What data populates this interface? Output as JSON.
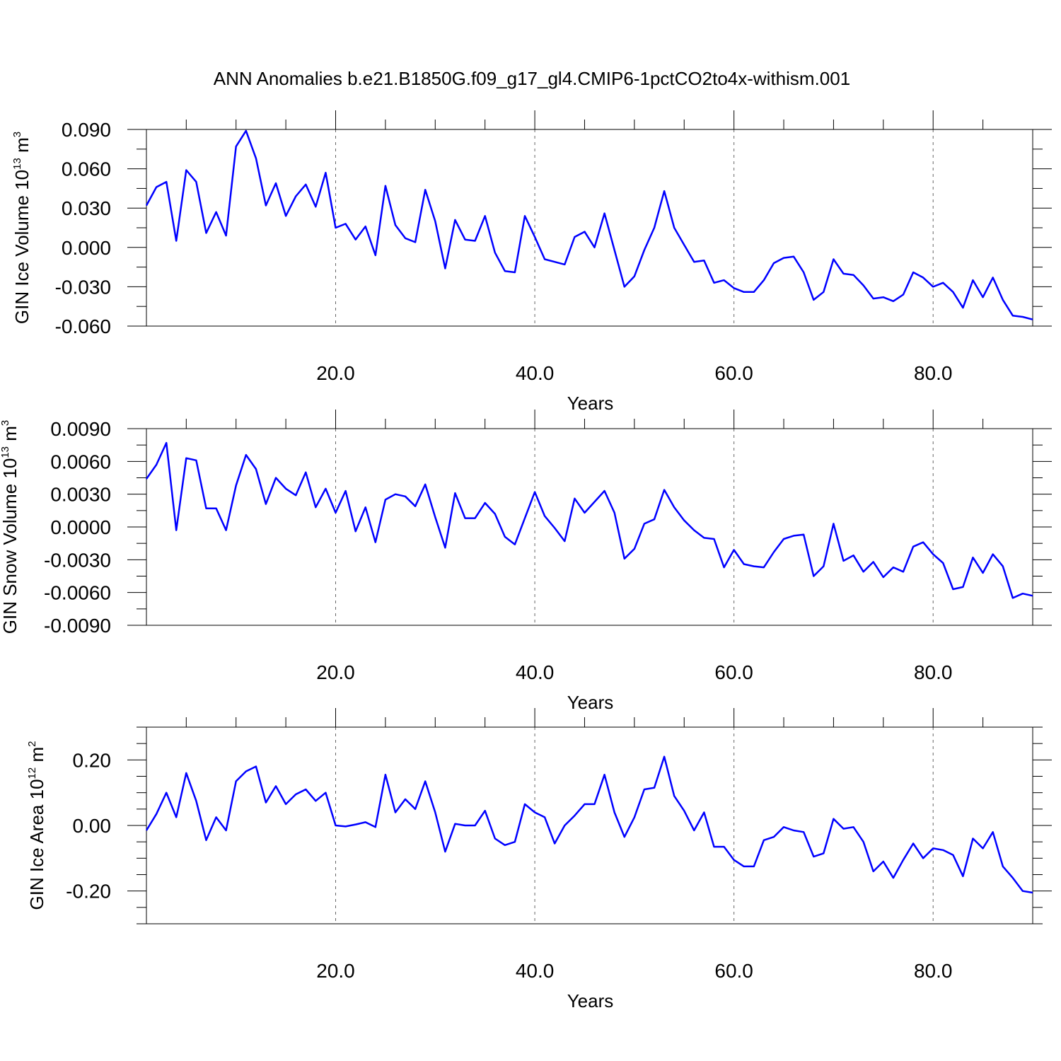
{
  "title": "ANN Anomalies b.e21.B1850G.f09_g17_gl4.CMIP6-1pctCO2to4x-withism.001",
  "chart_data": [
    {
      "type": "line",
      "ylabel": {
        "text": "GIN Ice Volume 10",
        "exp": "13",
        "unit": " m",
        "unit_exp": "3"
      },
      "xlabel": "Years",
      "xlim": [
        1,
        90
      ],
      "ylim": [
        -0.06,
        0.09
      ],
      "yticks": [
        "0.090",
        "0.060",
        "0.030",
        "0.000",
        "-0.030",
        "-0.060"
      ],
      "ytick_values": [
        0.09,
        0.06,
        0.03,
        0.0,
        -0.03,
        -0.06
      ],
      "xticks": [
        "20.0",
        "40.0",
        "60.0",
        "80.0"
      ],
      "xtick_values": [
        20,
        40,
        60,
        80
      ],
      "grid": "vertical-dashed",
      "color": "#0000ff",
      "values": [
        0.032,
        0.046,
        0.05,
        0.005,
        0.059,
        0.05,
        0.011,
        0.027,
        0.009,
        0.077,
        0.089,
        0.068,
        0.032,
        0.049,
        0.024,
        0.039,
        0.048,
        0.031,
        0.057,
        0.015,
        0.018,
        0.006,
        0.016,
        -0.006,
        0.047,
        0.017,
        0.007,
        0.004,
        0.044,
        0.02,
        -0.016,
        0.021,
        0.006,
        0.005,
        0.024,
        -0.004,
        -0.018,
        -0.019,
        0.024,
        0.008,
        -0.009,
        -0.011,
        -0.013,
        0.008,
        0.012,
        0.0,
        0.026,
        -0.002,
        -0.03,
        -0.022,
        -0.002,
        0.015,
        0.043,
        0.015,
        0.002,
        -0.011,
        -0.01,
        -0.027,
        -0.025,
        -0.031,
        -0.034,
        -0.034,
        -0.025,
        -0.012,
        -0.008,
        -0.007,
        -0.019,
        -0.04,
        -0.034,
        -0.009,
        -0.02,
        -0.021,
        -0.029,
        -0.039,
        -0.038,
        -0.041,
        -0.036,
        -0.019,
        -0.023,
        -0.03,
        -0.027,
        -0.034,
        -0.046,
        -0.025,
        -0.038,
        -0.023,
        -0.04,
        -0.052,
        -0.053,
        -0.055
      ]
    },
    {
      "type": "line",
      "ylabel": {
        "text": "GIN Snow Volume 10",
        "exp": "13",
        "unit": " m",
        "unit_exp": "3"
      },
      "xlabel": "Years",
      "xlim": [
        1,
        90
      ],
      "ylim": [
        -0.009,
        0.009
      ],
      "yticks": [
        "0.0090",
        "0.0060",
        "0.0030",
        "0.0000",
        "-0.0030",
        "-0.0060",
        "-0.0090"
      ],
      "ytick_values": [
        0.009,
        0.006,
        0.003,
        0.0,
        -0.003,
        -0.006,
        -0.009
      ],
      "xticks": [
        "20.0",
        "40.0",
        "60.0",
        "80.0"
      ],
      "xtick_values": [
        20,
        40,
        60,
        80
      ],
      "grid": "vertical-dashed",
      "color": "#0000ff",
      "values": [
        0.0044,
        0.0057,
        0.0077,
        -0.0003,
        0.0063,
        0.0061,
        0.0017,
        0.0017,
        -0.0003,
        0.0038,
        0.0066,
        0.0053,
        0.0021,
        0.0045,
        0.0035,
        0.0029,
        0.005,
        0.0018,
        0.0035,
        0.0013,
        0.0033,
        -0.0004,
        0.0018,
        -0.0014,
        0.0025,
        0.003,
        0.0028,
        0.0019,
        0.0039,
        0.0009,
        -0.0019,
        0.0031,
        0.0008,
        0.0008,
        0.0022,
        0.0012,
        -0.0009,
        -0.0016,
        0.0008,
        0.0032,
        0.001,
        -0.0001,
        -0.0013,
        0.0026,
        0.0013,
        0.0023,
        0.0033,
        0.0013,
        -0.0029,
        -0.002,
        0.0003,
        0.0007,
        0.0034,
        0.0018,
        0.0006,
        -0.0003,
        -0.001,
        -0.0011,
        -0.0037,
        -0.0021,
        -0.0034,
        -0.0036,
        -0.0037,
        -0.0023,
        -0.0011,
        -0.0008,
        -0.0007,
        -0.0045,
        -0.0036,
        0.0003,
        -0.0031,
        -0.0026,
        -0.0041,
        -0.0032,
        -0.0046,
        -0.0037,
        -0.0041,
        -0.0018,
        -0.0014,
        -0.0025,
        -0.0033,
        -0.0057,
        -0.0055,
        -0.0028,
        -0.0042,
        -0.0025,
        -0.0036,
        -0.0065,
        -0.0061,
        -0.0063
      ]
    },
    {
      "type": "line",
      "ylabel": {
        "text": "GIN Ice Area 10",
        "exp": "12",
        "unit": " m",
        "unit_exp": "2"
      },
      "xlabel": "Years",
      "xlim": [
        1,
        90
      ],
      "ylim": [
        -0.3,
        0.3
      ],
      "yticks": [
        "0.20",
        "0.00",
        "-0.20"
      ],
      "ytick_values": [
        0.2,
        0.0,
        -0.2
      ],
      "xticks": [
        "20.0",
        "40.0",
        "60.0",
        "80.0"
      ],
      "xtick_values": [
        20,
        40,
        60,
        80
      ],
      "grid": "vertical-dashed",
      "color": "#0000ff",
      "values": [
        -0.015,
        0.035,
        0.1,
        0.025,
        0.16,
        0.075,
        -0.045,
        0.025,
        -0.015,
        0.135,
        0.165,
        0.18,
        0.07,
        0.12,
        0.065,
        0.095,
        0.11,
        0.075,
        0.1,
        0.0,
        -0.003,
        0.003,
        0.01,
        -0.005,
        0.155,
        0.04,
        0.08,
        0.05,
        0.135,
        0.04,
        -0.08,
        0.005,
        0.0,
        0.0,
        0.045,
        -0.04,
        -0.06,
        -0.05,
        0.065,
        0.04,
        0.025,
        -0.055,
        0.0,
        0.03,
        0.065,
        0.065,
        0.155,
        0.04,
        -0.035,
        0.025,
        0.11,
        0.115,
        0.21,
        0.09,
        0.045,
        -0.015,
        0.04,
        -0.065,
        -0.065,
        -0.105,
        -0.125,
        -0.125,
        -0.045,
        -0.035,
        -0.005,
        -0.015,
        -0.02,
        -0.095,
        -0.085,
        0.02,
        -0.01,
        -0.005,
        -0.05,
        -0.14,
        -0.11,
        -0.16,
        -0.105,
        -0.055,
        -0.1,
        -0.07,
        -0.075,
        -0.09,
        -0.155,
        -0.04,
        -0.07,
        -0.02,
        -0.125,
        -0.16,
        -0.2,
        -0.205
      ]
    }
  ]
}
